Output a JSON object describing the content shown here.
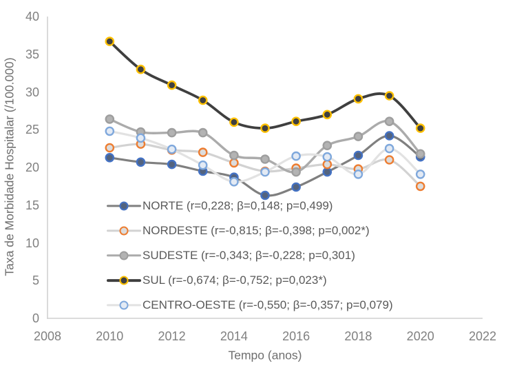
{
  "chart_data": {
    "type": "line",
    "title": "",
    "xlabel": "Tempo (anos)",
    "ylabel": "Taxa de Morbidade Hospitalar (/100.000)",
    "xlim": [
      2008,
      2022
    ],
    "ylim": [
      0,
      40
    ],
    "x_ticks": [
      2008,
      2010,
      2012,
      2014,
      2016,
      2018,
      2020,
      2022
    ],
    "y_ticks": [
      0,
      5,
      10,
      15,
      20,
      25,
      30,
      35,
      40
    ],
    "grid": false,
    "legend_position": "inside-bottom-left",
    "smooth_lines": true,
    "x": [
      2010,
      2011,
      2012,
      2013,
      2014,
      2015,
      2016,
      2017,
      2018,
      2019,
      2020
    ],
    "series": [
      {
        "name": "NORTE",
        "legend_label": "NORTE (r=0,228; β=0,148; p=0,499)",
        "values": [
          21.3,
          20.7,
          20.4,
          19.5,
          18.7,
          16.3,
          17.4,
          19.4,
          21.6,
          24.2,
          21.4
        ],
        "line_color": "#7F7F7F",
        "line_width": 3.2,
        "marker_fill": "#53637F",
        "marker_ring": "#4472C4"
      },
      {
        "name": "NORDESTE",
        "legend_label": "NORDESTE (r=-0,815; β=-0,398; p=0,002*)",
        "values": [
          22.6,
          23.1,
          22.3,
          22.0,
          20.6,
          19.5,
          19.9,
          20.4,
          19.8,
          21.0,
          17.5
        ],
        "line_color": "#D2D2D2",
        "line_width": 3.2,
        "marker_fill": "#DCDCDC",
        "marker_ring": "#ED7D31"
      },
      {
        "name": "SUDESTE",
        "legend_label": "SUDESTE (r=-0,343; β=-0,228; p=0,301)",
        "values": [
          26.4,
          24.7,
          24.6,
          24.6,
          21.6,
          21.1,
          19.4,
          22.9,
          24.1,
          26.1,
          21.8
        ],
        "line_color": "#ABABAB",
        "line_width": 3.4,
        "marker_fill": "#B3B3B3",
        "marker_ring": "#9E9E9E"
      },
      {
        "name": "SUL",
        "legend_label": "SUL (r=-0,674; β=-0,752; p=0,023*)",
        "values": [
          36.7,
          33.0,
          30.9,
          28.9,
          26.0,
          25.2,
          26.1,
          27.0,
          29.1,
          29.5,
          25.2
        ],
        "line_color": "#3F3F3F",
        "line_width": 3.8,
        "marker_fill": "#404040",
        "marker_ring": "#FFC000"
      },
      {
        "name": "CENTRO-OESTE",
        "legend_label": "CENTRO-OESTE (r=-0,550; β=-0,357; p=0,079)",
        "values": [
          24.8,
          23.9,
          22.4,
          20.3,
          18.1,
          19.4,
          21.5,
          21.4,
          19.1,
          22.5,
          19.1
        ],
        "line_color": "#E2E2E2",
        "line_width": 3.2,
        "marker_fill": "#E3EAF4",
        "marker_ring": "#7FA8DC"
      }
    ]
  },
  "colors": {
    "background": "#FFFFFF",
    "axis_line": "#D6D6D6",
    "tick_text": "#808080",
    "axis_title_text": "#6F6F6F",
    "legend_text": "#595959"
  }
}
